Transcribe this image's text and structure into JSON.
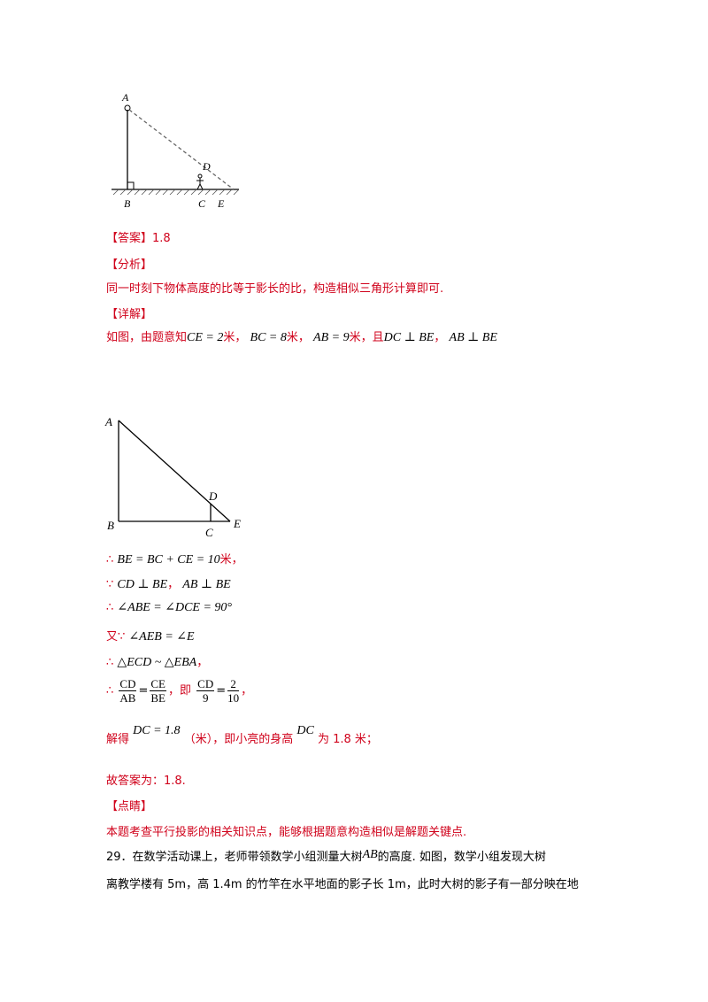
{
  "figure1": {
    "labels": {
      "A": "A",
      "B": "B",
      "C": "C",
      "D": "D",
      "E": "E"
    }
  },
  "answer": {
    "tag": "【答案】",
    "value": "1.8"
  },
  "analysis": {
    "tag": "【分析】",
    "text": "同一时刻下物体高度的比等于影长的比，构造相似三角形计算即可."
  },
  "detail": {
    "tag": "【详解】",
    "intro": "如图，由题意知",
    "ce": "CE = 2",
    "unit": "米",
    "sep": "，",
    "bc": "BC = 8",
    "ab": "AB = 9",
    "and": "，且",
    "dc_perp": "DC ⊥ BE",
    "ab_perp": "AB ⊥ BE"
  },
  "figure2": {
    "labels": {
      "A": "A",
      "B": "B",
      "C": "C",
      "D": "D",
      "E": "E"
    }
  },
  "proof": {
    "therefore": "∴",
    "because": "∵",
    "also": "又",
    "line1": "BE = BC + CE = 10",
    "line1_unit": "米，",
    "line2a": "CD ⊥ BE",
    "line2b": "AB ⊥ BE",
    "line3": "∠ABE = ∠DCE = 90°",
    "line4": "∠AEB = ∠E",
    "line5": "△ECD ~ △EBA",
    "line5_tail": "，",
    "frac1_num": "CD",
    "frac1_den": "AB",
    "frac2_num": "CE",
    "frac2_den": "BE",
    "mid": "，即",
    "frac3_num": "CD",
    "frac3_den": "9",
    "frac4_num": "2",
    "frac4_den": "10",
    "eq": "=",
    "tail": "，",
    "solve_prefix": "解得",
    "solve_math": "DC = 1.8",
    "solve_mid": "（米），即小亮的身高",
    "solve_dc": "DC",
    "solve_suffix": "为 1.8 米；"
  },
  "final": {
    "text": "故答案为：1.8."
  },
  "comment": {
    "tag": "【点睛】",
    "text": "本题考查平行投影的相关知识点，能够根据题意构造相似是解题关键点."
  },
  "question29": {
    "number": "29．",
    "line1_a": "在数学活动课上，老师带领数学小组测量大树",
    "line1_ab": "AB",
    "line1_b": "的高度. 如图，数学小组发现大树",
    "line2": "离教学楼有 5m，高 1.4m 的竹竿在水平地面的影子长 1m，此时大树的影子有一部分映在地"
  }
}
